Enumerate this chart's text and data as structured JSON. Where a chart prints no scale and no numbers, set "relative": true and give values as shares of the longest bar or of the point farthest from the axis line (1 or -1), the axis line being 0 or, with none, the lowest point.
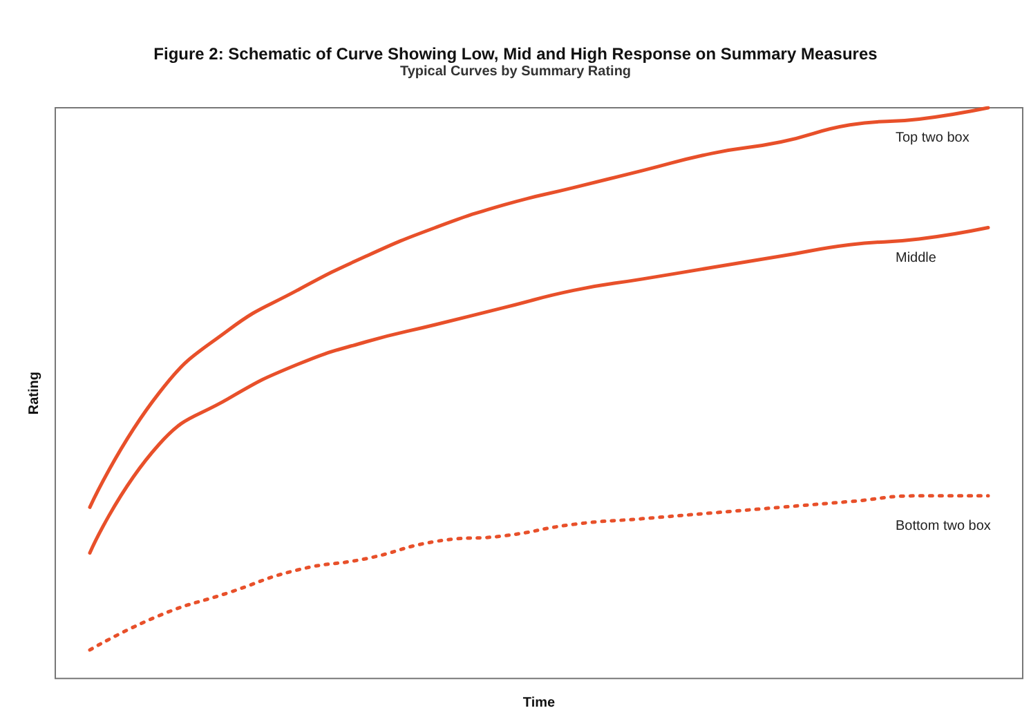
{
  "chart_data": {
    "type": "line",
    "title": "Figure 2: Schematic of Curve Showing Low, Mid and High Response on Summary Measures",
    "subtitle": "Typical Curves by Summary Rating",
    "xlabel": "Time",
    "ylabel": "Rating",
    "relative": true,
    "grid": false,
    "legend": false,
    "marker": "none",
    "categories": [
      null,
      null,
      null,
      null,
      null,
      null,
      null,
      null,
      null,
      null,
      null,
      null,
      null,
      null
    ],
    "series": [
      {
        "name": "Top two box",
        "color": "#e8502a",
        "line_style": "solid",
        "values": [
          0.3,
          0.5,
          0.61,
          0.68,
          0.74,
          0.79,
          0.83,
          0.86,
          0.89,
          0.92,
          0.94,
          0.97,
          0.98,
          1
        ]
      },
      {
        "name": "Middle",
        "color": "#e8502a",
        "line_style": "solid",
        "values": [
          0.22,
          0.41,
          0.49,
          0.55,
          0.59,
          0.62,
          0.65,
          0.68,
          0.7,
          0.72,
          0.74,
          0.76,
          0.77,
          0.79
        ]
      },
      {
        "name": "Bottom two box",
        "color": "#e8502a",
        "line_style": "dotted",
        "values": [
          0.05,
          0.11,
          0.15,
          0.19,
          0.21,
          0.24,
          0.25,
          0.27,
          0.28,
          0.29,
          0.3,
          0.31,
          0.32,
          0.32
        ]
      }
    ]
  }
}
